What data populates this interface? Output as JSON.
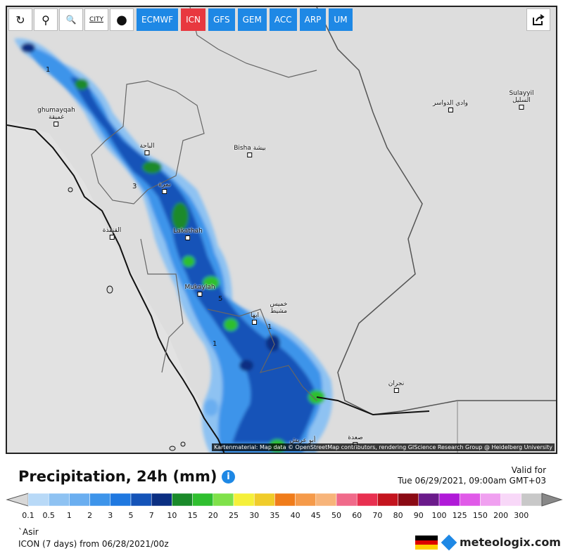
{
  "toolbar": {
    "buttons": [
      {
        "name": "refresh-button",
        "icon": "refresh-icon",
        "glyph": "↻"
      },
      {
        "name": "location-button",
        "icon": "location-pin-icon",
        "glyph": "⚲"
      },
      {
        "name": "zoom-button",
        "icon": "zoom-icon",
        "glyph": "🔍"
      },
      {
        "name": "city-toggle-button",
        "icon": "city-icon",
        "glyph": "CITY"
      },
      {
        "name": "marker-button",
        "icon": "balloon-icon",
        "glyph": "●"
      }
    ],
    "models": [
      {
        "label": "ECMWF",
        "active": false
      },
      {
        "label": "ICN",
        "active": true
      },
      {
        "label": "GFS",
        "active": false
      },
      {
        "label": "GEM",
        "active": false
      },
      {
        "label": "ACC",
        "active": false
      },
      {
        "label": "ARP",
        "active": false
      },
      {
        "label": "UM",
        "active": false
      }
    ],
    "share_icon": "share-icon",
    "colors": {
      "model": "#1e88e5",
      "active": "#e8383f"
    }
  },
  "map": {
    "cities": [
      {
        "label": "ghumayqah\nغميقة"
      },
      {
        "label": "الباحة"
      },
      {
        "label": "Bisha بيشة"
      },
      {
        "label": "نمرة"
      },
      {
        "label": "القنفذة"
      },
      {
        "label": "Lakathah"
      },
      {
        "label": "Mukaylah"
      },
      {
        "label": "خميس\nمشيط"
      },
      {
        "label": "ابها"
      },
      {
        "label": "وادي الدواسر"
      },
      {
        "label": "Sulayyil\nالسليل"
      },
      {
        "label": "نجران"
      },
      {
        "label": "صعدة"
      },
      {
        "label": "أبو عريش"
      }
    ],
    "contour_labels": [
      "1",
      "3",
      "5",
      "1",
      "1"
    ],
    "attribution": "Kartenmaterial: Map data © OpenStreetMap contributors, rendering GIScience Research Group @ Heidelberg University"
  },
  "legend": {
    "title": "Precipitation, 24h (mm)",
    "info_icon": "i",
    "valid_label": "Valid for",
    "valid_time": "Tue 06/29/2021, 09:00am GMT+03",
    "scale": [
      {
        "v": "0.1",
        "c": "#b8d9f7"
      },
      {
        "v": "0.5",
        "c": "#8ec2f2"
      },
      {
        "v": "1",
        "c": "#6aaef0"
      },
      {
        "v": "2",
        "c": "#3d94ea"
      },
      {
        "v": "3",
        "c": "#1f78e0"
      },
      {
        "v": "5",
        "c": "#1453b8"
      },
      {
        "v": "7",
        "c": "#0b2f82"
      },
      {
        "v": "10",
        "c": "#1a8a2a"
      },
      {
        "v": "15",
        "c": "#2fbf2f"
      },
      {
        "v": "20",
        "c": "#7fe14a"
      },
      {
        "v": "25",
        "c": "#f5f03a"
      },
      {
        "v": "30",
        "c": "#f0cc2a"
      },
      {
        "v": "35",
        "c": "#f07c1a"
      },
      {
        "v": "40",
        "c": "#f59a4a"
      },
      {
        "v": "45",
        "c": "#f7b47a"
      },
      {
        "v": "50",
        "c": "#f06a8a"
      },
      {
        "v": "60",
        "c": "#e83050"
      },
      {
        "v": "70",
        "c": "#c4141e"
      },
      {
        "v": "80",
        "c": "#8a0a14"
      },
      {
        "v": "90",
        "c": "#6a1a8a"
      },
      {
        "v": "100",
        "c": "#b01ad8"
      },
      {
        "v": "125",
        "c": "#e05ae8"
      },
      {
        "v": "150",
        "c": "#f0a0f0"
      },
      {
        "v": "200",
        "c": "#f8d8f8"
      },
      {
        "v": "300",
        "c": "#c8c8c8"
      }
    ],
    "region": "`Asir",
    "model_run": "ICON (7 days) from 06/28/2021/00z",
    "brand": "meteologix.com",
    "flag_colors": [
      "#000000",
      "#dd0000",
      "#ffce00"
    ]
  }
}
